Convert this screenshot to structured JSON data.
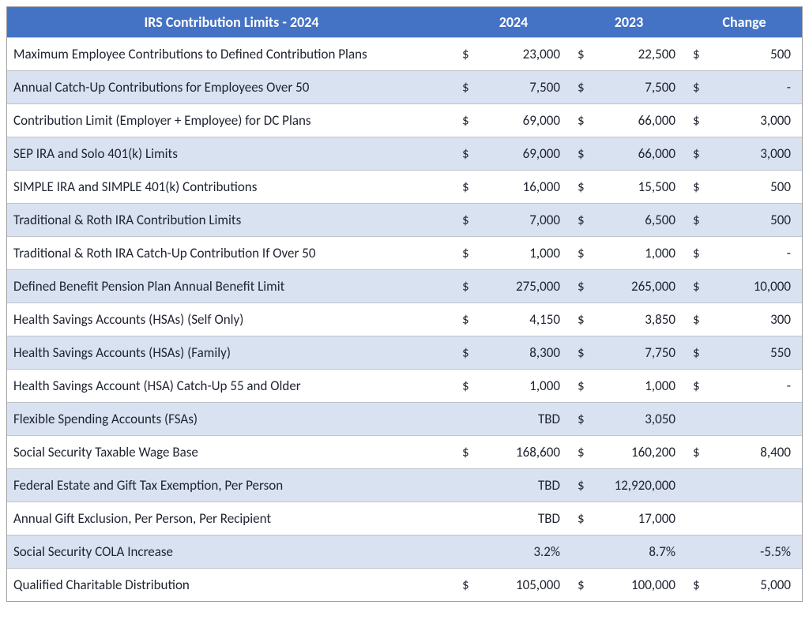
{
  "table": {
    "title": "IRS Contribution Limits - 2024",
    "columns": {
      "year_a": "2024",
      "year_b": "2023",
      "change": "Change"
    },
    "colors": {
      "header_bg": "#4472c4",
      "header_fg": "#ffffff",
      "row_alt_bg": "#d9e2f1",
      "row_bg": "#ffffff",
      "border": "#bfc4cc",
      "text": "#1f2430"
    },
    "font": {
      "family": "Calibri",
      "size_header": 18,
      "size_body": 17
    },
    "rows": [
      {
        "label": "Maximum Employee Contributions to Defined Contribution Plans",
        "c2024": "$",
        "v2024": "23,000",
        "c2023": "$",
        "v2023": "22,500",
        "cchg": "$",
        "vchg": "500"
      },
      {
        "label": "Annual Catch-Up Contributions for Employees Over 50",
        "c2024": "$",
        "v2024": "7,500",
        "c2023": "$",
        "v2023": "7,500",
        "cchg": "$",
        "vchg": "-"
      },
      {
        "label": "Contribution Limit (Employer + Employee) for DC Plans",
        "c2024": "$",
        "v2024": "69,000",
        "c2023": "$",
        "v2023": "66,000",
        "cchg": "$",
        "vchg": "3,000"
      },
      {
        "label": "SEP IRA and Solo 401(k) Limits",
        "c2024": "$",
        "v2024": "69,000",
        "c2023": "$",
        "v2023": "66,000",
        "cchg": "$",
        "vchg": "3,000"
      },
      {
        "label": "SIMPLE IRA and SIMPLE 401(k) Contributions",
        "c2024": "$",
        "v2024": "16,000",
        "c2023": "$",
        "v2023": "15,500",
        "cchg": "$",
        "vchg": "500"
      },
      {
        "label": "Traditional & Roth IRA Contribution Limits",
        "c2024": "$",
        "v2024": "7,000",
        "c2023": "$",
        "v2023": "6,500",
        "cchg": "$",
        "vchg": "500"
      },
      {
        "label": "Traditional & Roth IRA Catch-Up Contribution If Over 50",
        "c2024": "$",
        "v2024": "1,000",
        "c2023": "$",
        "v2023": "1,000",
        "cchg": "$",
        "vchg": "-"
      },
      {
        "label": "Defined Benefit Pension Plan Annual Benefit Limit",
        "c2024": "$",
        "v2024": "275,000",
        "c2023": "$",
        "v2023": "265,000",
        "cchg": "$",
        "vchg": "10,000"
      },
      {
        "label": "Health Savings Accounts (HSAs) (Self Only)",
        "c2024": "$",
        "v2024": "4,150",
        "c2023": "$",
        "v2023": "3,850",
        "cchg": "$",
        "vchg": "300"
      },
      {
        "label": "Health Savings Accounts (HSAs) (Family)",
        "c2024": "$",
        "v2024": "8,300",
        "c2023": "$",
        "v2023": "7,750",
        "cchg": "$",
        "vchg": "550"
      },
      {
        "label": "Health Savings Account (HSA) Catch-Up 55 and Older",
        "c2024": "$",
        "v2024": "1,000",
        "c2023": "$",
        "v2023": "1,000",
        "cchg": "$",
        "vchg": "-"
      },
      {
        "label": "Flexible Spending Accounts (FSAs)",
        "c2024": "",
        "v2024": "TBD",
        "c2023": "$",
        "v2023": "3,050",
        "cchg": "",
        "vchg": ""
      },
      {
        "label": "Social Security Taxable Wage Base",
        "c2024": "$",
        "v2024": "168,600",
        "c2023": "$",
        "v2023": "160,200",
        "cchg": "$",
        "vchg": "8,400"
      },
      {
        "label": "Federal Estate and Gift Tax Exemption, Per Person",
        "c2024": "",
        "v2024": "TBD",
        "c2023": "$",
        "v2023": "12,920,000",
        "cchg": "",
        "vchg": ""
      },
      {
        "label": "Annual Gift Exclusion, Per Person, Per Recipient",
        "c2024": "",
        "v2024": "TBD",
        "c2023": "$",
        "v2023": "17,000",
        "cchg": "",
        "vchg": ""
      },
      {
        "label": "Social Security COLA Increase",
        "c2024": "",
        "v2024": "3.2%",
        "c2023": "",
        "v2023": "8.7%",
        "cchg": "",
        "vchg": "-5.5%"
      },
      {
        "label": "Qualified Charitable Distribution",
        "c2024": "$",
        "v2024": "105,000",
        "c2023": "$",
        "v2023": "100,000",
        "cchg": "$",
        "vchg": "5,000"
      }
    ]
  }
}
